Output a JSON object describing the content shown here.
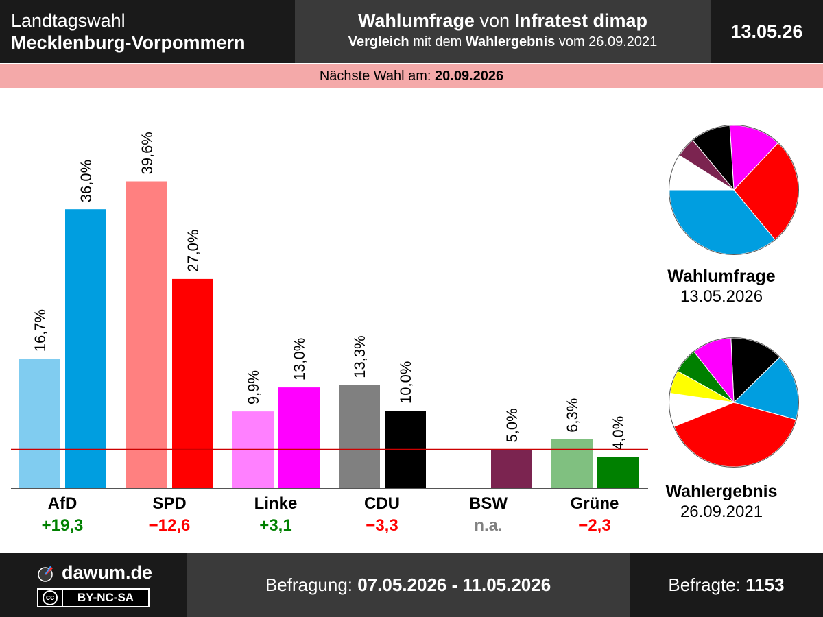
{
  "header": {
    "left_line1": "Landtagswahl",
    "left_line2": "Mecklenburg-Vorpommern",
    "title_bold1": "Wahlumfrage",
    "title_plain": " von ",
    "title_bold2": "Infratest dimap",
    "subtitle_bold1": "Vergleich",
    "subtitle_plain1": " mit dem ",
    "subtitle_bold2": "Wahlergebnis",
    "subtitle_plain2": " vom 26.09.2021",
    "date": "13.05.26"
  },
  "banner": {
    "label": "Nächste Wahl am: ",
    "date": "20.09.2026"
  },
  "chart_data": {
    "type": "bar",
    "categories": [
      "AfD",
      "SPD",
      "Linke",
      "CDU",
      "BSW",
      "Grüne"
    ],
    "series": [
      {
        "name": "Wahlergebnis",
        "values": [
          16.7,
          39.6,
          9.9,
          13.3,
          null,
          6.3
        ],
        "labels": [
          "16,7%",
          "39,6%",
          "9,9%",
          "13,3%",
          "",
          "6,3%"
        ]
      },
      {
        "name": "Wahlumfrage",
        "values": [
          36.0,
          27.0,
          13.0,
          10.0,
          5.0,
          4.0
        ],
        "labels": [
          "36,0%",
          "27,0%",
          "13,0%",
          "10,0%",
          "5,0%",
          "4,0%"
        ]
      }
    ],
    "colors_result": [
      "#80ccf0",
      "#ff8080",
      "#ff80ff",
      "#808080",
      "#ffffff",
      "#80c080"
    ],
    "colors_poll": [
      "#009ee0",
      "#ff0000",
      "#ff00ff",
      "#000000",
      "#7b2450",
      "#008000"
    ],
    "changes": [
      "+19,3",
      "−12,6",
      "+3,1",
      "−3,3",
      "n.a.",
      "−2,3"
    ],
    "change_colors": [
      "#008000",
      "#ff0000",
      "#008000",
      "#ff0000",
      "#808080",
      "#ff0000"
    ],
    "threshold": 5.0,
    "threshold_color": "#cc0000",
    "ylim": [
      0,
      40
    ]
  },
  "pies": {
    "poll": {
      "title": "Wahlumfrage",
      "date": "13.05.2026",
      "slices": [
        {
          "party": "AfD",
          "value": 36.0,
          "color": "#009ee0"
        },
        {
          "party": "SPD",
          "value": 27.0,
          "color": "#ff0000"
        },
        {
          "party": "Linke",
          "value": 13.0,
          "color": "#ff00ff"
        },
        {
          "party": "CDU",
          "value": 10.0,
          "color": "#000000"
        },
        {
          "party": "BSW",
          "value": 5.0,
          "color": "#7b2450"
        }
      ]
    },
    "result": {
      "title": "Wahlergebnis",
      "date": "26.09.2021",
      "slices": [
        {
          "party": "SPD",
          "value": 39.6,
          "color": "#ff0000"
        },
        {
          "party": "AfD",
          "value": 16.7,
          "color": "#009ee0"
        },
        {
          "party": "CDU",
          "value": 13.3,
          "color": "#000000"
        },
        {
          "party": "Linke",
          "value": 9.9,
          "color": "#ff00ff"
        },
        {
          "party": "Grüne",
          "value": 6.3,
          "color": "#008000"
        },
        {
          "party": "FDP",
          "value": 5.8,
          "color": "#ffff00"
        }
      ]
    }
  },
  "footer": {
    "logo_text": "dawum.de",
    "license_icon": "cc-icon",
    "license_text": "BY-NC-SA",
    "period_label": "Befragung: ",
    "period_value": "07.05.2026 - 11.05.2026",
    "respondents_label": "Befragte: ",
    "respondents_value": "1153"
  }
}
